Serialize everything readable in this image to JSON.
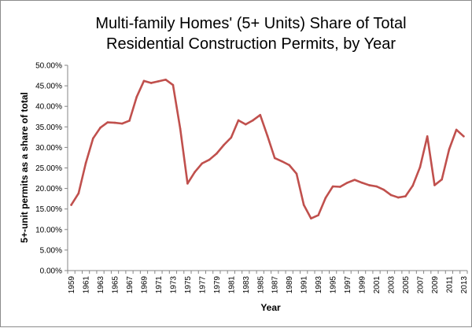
{
  "chart_data": {
    "type": "line",
    "title_lines": [
      "Multi-family Homes' (5+ Units) Share of Total",
      "Residential Construction Permits, by Year"
    ],
    "xlabel": "Year",
    "ylabel": "5+-unit permits as a share of total",
    "ylim": [
      0,
      0.5
    ],
    "y_tick_labels": [
      "0.00%",
      "5.00%",
      "10.00%",
      "15.00%",
      "20.00%",
      "25.00%",
      "30.00%",
      "35.00%",
      "40.00%",
      "45.00%",
      "50.00%"
    ],
    "y_tick_values": [
      0,
      0.05,
      0.1,
      0.15,
      0.2,
      0.25,
      0.3,
      0.35,
      0.4,
      0.45,
      0.5
    ],
    "x_tick_labels": [
      "1959",
      "1961",
      "1963",
      "1965",
      "1967",
      "1969",
      "1971",
      "1973",
      "1975",
      "1977",
      "1979",
      "1981",
      "1983",
      "1985",
      "1987",
      "1989",
      "1991",
      "1993",
      "1995",
      "1997",
      "1999",
      "2001",
      "2003",
      "2005",
      "2007",
      "2009",
      "2011",
      "2013"
    ],
    "grid": false,
    "legend": "none",
    "series": [
      {
        "color": "#c0504d",
        "x": [
          1959,
          1960,
          1961,
          1962,
          1963,
          1964,
          1965,
          1966,
          1967,
          1968,
          1969,
          1970,
          1971,
          1972,
          1973,
          1974,
          1975,
          1976,
          1977,
          1978,
          1979,
          1980,
          1981,
          1982,
          1983,
          1984,
          1985,
          1986,
          1987,
          1988,
          1989,
          1990,
          1991,
          1992,
          1993,
          1994,
          1995,
          1996,
          1997,
          1998,
          1999,
          2000,
          2001,
          2002,
          2003,
          2004,
          2005,
          2006,
          2007,
          2008,
          2009,
          2010,
          2011,
          2012,
          2013
        ],
        "values": [
          0.16,
          0.188,
          0.262,
          0.322,
          0.348,
          0.361,
          0.36,
          0.358,
          0.365,
          0.423,
          0.462,
          0.457,
          0.461,
          0.465,
          0.452,
          0.345,
          0.212,
          0.24,
          0.261,
          0.27,
          0.285,
          0.306,
          0.324,
          0.366,
          0.356,
          0.366,
          0.379,
          0.328,
          0.274,
          0.266,
          0.257,
          0.236,
          0.16,
          0.127,
          0.135,
          0.177,
          0.205,
          0.204,
          0.214,
          0.221,
          0.214,
          0.208,
          0.205,
          0.197,
          0.184,
          0.178,
          0.181,
          0.207,
          0.252,
          0.327,
          0.208,
          0.222,
          0.295,
          0.343,
          0.327
        ]
      }
    ]
  }
}
